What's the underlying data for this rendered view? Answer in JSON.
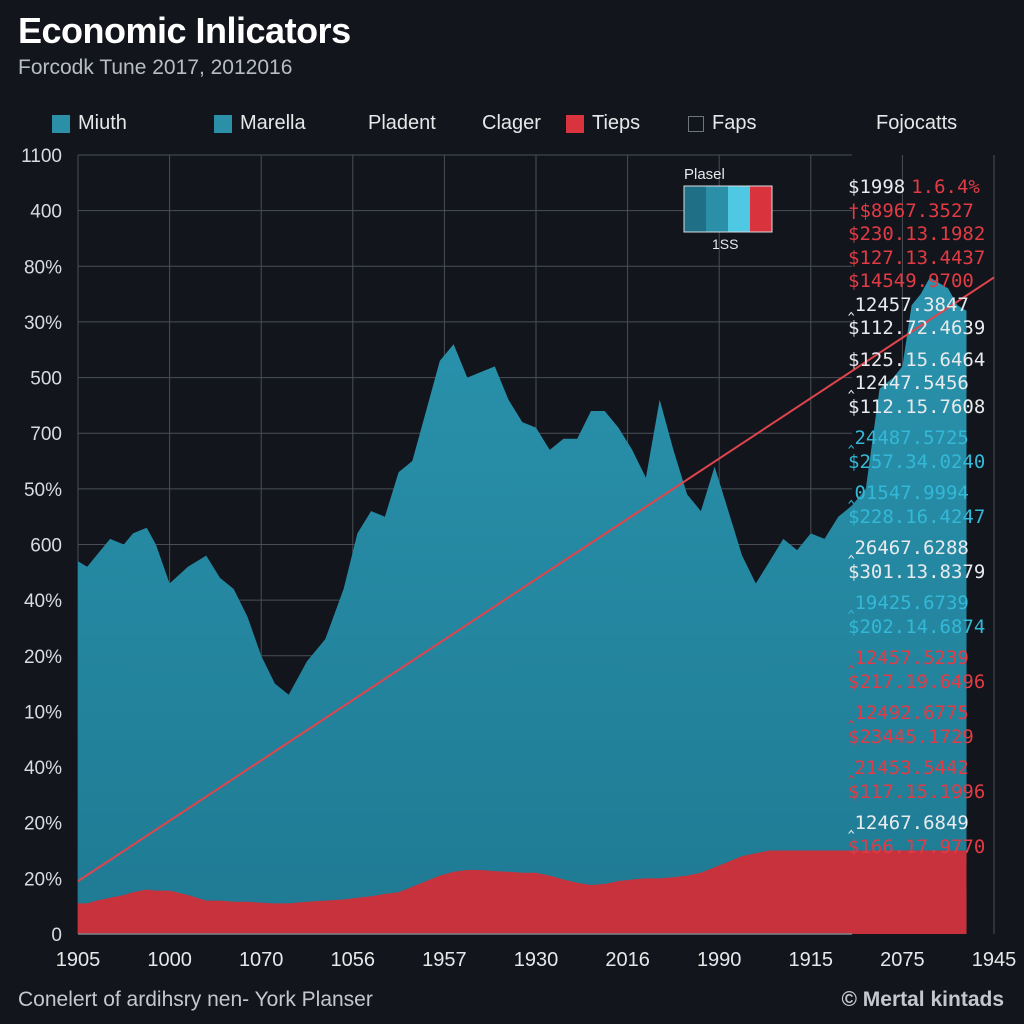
{
  "title": "Economic Inlicators",
  "subtitle": "Forcodk Tune 2017, 2012016",
  "legend": {
    "items": [
      {
        "label": "Miuth",
        "color": "#2b8fa8",
        "swatch": "fill"
      },
      {
        "label": "Marella",
        "color": "#2b8fa8",
        "swatch": "fill"
      },
      {
        "label": "Pladent",
        "color": "",
        "swatch": "none"
      },
      {
        "label": "Clager",
        "color": "",
        "swatch": "none"
      },
      {
        "label": "Tieps",
        "color": "#d9333d",
        "swatch": "fill"
      },
      {
        "label": "Faps",
        "color": "#6e747c",
        "swatch": "outline"
      }
    ],
    "header": "Fojocatts"
  },
  "inset": {
    "label": "Plasel",
    "value": "1SS",
    "colors": [
      "#1f6f86",
      "#2b8fa8",
      "#4fc8e3",
      "#d9333d"
    ]
  },
  "panel_rows": [
    {
      "text": "$1998",
      "extra": "1.6.4%",
      "color": "white",
      "extra_color": "red"
    },
    {
      "text": "†$8967.3527",
      "color": "red"
    },
    {
      "text": "$230.13.1982",
      "color": "red"
    },
    {
      "text": "$127.13.4437",
      "color": "red"
    },
    {
      "text": "$14549.9700",
      "color": "red"
    },
    {
      "text": "‸12457.3847",
      "color": "white"
    },
    {
      "text": "$112.72.4639",
      "color": "white"
    },
    {
      "text": "$125.15.6464",
      "color": "white",
      "gap": true
    },
    {
      "text": "‸12447.5456",
      "color": "white"
    },
    {
      "text": "$112.15.7608",
      "color": "white"
    },
    {
      "text": "‸24487.5725",
      "color": "cyan",
      "gap": true
    },
    {
      "text": "$257.34.0240",
      "color": "cyan"
    },
    {
      "text": "‸01547.9994",
      "color": "cyan",
      "gap": true
    },
    {
      "text": "$228.16.4247",
      "color": "cyan"
    },
    {
      "text": "‸26467.6288",
      "color": "white",
      "gap": true
    },
    {
      "text": "$301.13.8379",
      "color": "white"
    },
    {
      "text": "‸19425.6739",
      "color": "cyan",
      "gap": true
    },
    {
      "text": "$202.14.6874",
      "color": "cyan"
    },
    {
      "text": "‸12457.5239",
      "color": "red",
      "gap": true
    },
    {
      "text": "$217.19.6496",
      "color": "red"
    },
    {
      "text": "‸12492.6775",
      "color": "red",
      "gap": true
    },
    {
      "text": "$23445.1729",
      "color": "red"
    },
    {
      "text": "‸21453.5442",
      "color": "red",
      "gap": true
    },
    {
      "text": "$117.15.1996",
      "color": "red"
    },
    {
      "text": "‸12467.6849",
      "color": "white",
      "gap": true
    },
    {
      "text": "$166.17.9770",
      "color": "red"
    }
  ],
  "footer": "Conelert of ardihsry nen- York Planser",
  "brand": "© Mertal kintads",
  "colors": {
    "area_teal": "#1f7a93",
    "area_teal_top": "#2a93ad",
    "area_red": "#c8323d",
    "trend": "#e0444c",
    "grid": "#4a4f57",
    "background": "#12151b"
  },
  "chart_data": {
    "type": "area",
    "y_tick_labels": [
      "1100",
      "400",
      "80%",
      "30%",
      "500",
      "700",
      "50%",
      "600",
      "40%",
      "20%",
      "10%",
      "40%",
      "20%",
      "20%",
      "0"
    ],
    "x_tick_labels": [
      "1905",
      "1000",
      "1070",
      "1056",
      "1957",
      "1930",
      "2016",
      "1990",
      "1915",
      "2075",
      "1945"
    ],
    "ylim": [
      0,
      14
    ],
    "x": [
      0,
      0.1,
      0.2,
      0.35,
      0.5,
      0.6,
      0.75,
      0.85,
      1.0,
      1.2,
      1.4,
      1.55,
      1.7,
      1.85,
      2.0,
      2.15,
      2.3,
      2.5,
      2.7,
      2.9,
      3.05,
      3.2,
      3.35,
      3.5,
      3.65,
      3.8,
      3.95,
      4.1,
      4.25,
      4.4,
      4.55,
      4.7,
      4.85,
      5.0,
      5.15,
      5.3,
      5.45,
      5.6,
      5.75,
      5.9,
      6.05,
      6.2,
      6.35,
      6.5,
      6.65,
      6.8,
      6.95,
      7.1,
      7.25,
      7.4,
      7.55,
      7.7,
      7.85,
      8.0,
      8.15,
      8.3,
      8.45,
      8.6,
      8.75,
      8.9,
      9.0,
      9.1,
      9.2,
      9.3,
      9.4,
      9.5,
      9.6,
      9.7
    ],
    "series": [
      {
        "name": "Miuth",
        "values": [
          6.7,
          6.6,
          6.8,
          7.1,
          7.0,
          7.2,
          7.3,
          7.0,
          6.3,
          6.6,
          6.8,
          6.4,
          6.2,
          5.7,
          5.0,
          4.5,
          4.3,
          4.9,
          5.3,
          6.2,
          7.2,
          7.6,
          7.5,
          8.3,
          8.5,
          9.4,
          10.3,
          10.6,
          10.0,
          10.1,
          10.2,
          9.6,
          9.2,
          9.1,
          8.7,
          8.9,
          8.9,
          9.4,
          9.4,
          9.1,
          8.7,
          8.2,
          9.6,
          8.7,
          7.9,
          7.6,
          8.4,
          7.6,
          6.8,
          6.3,
          6.7,
          7.1,
          6.9,
          7.2,
          7.1,
          7.5,
          7.7,
          8.0,
          9.8,
          10.0,
          10.2,
          11.3,
          11.5,
          11.8,
          11.7,
          11.6,
          11.3,
          11.2
        ]
      },
      {
        "name": "Tieps",
        "values": [
          0.55,
          0.55,
          0.6,
          0.65,
          0.7,
          0.75,
          0.8,
          0.78,
          0.78,
          0.7,
          0.6,
          0.6,
          0.58,
          0.58,
          0.56,
          0.55,
          0.55,
          0.58,
          0.6,
          0.62,
          0.65,
          0.68,
          0.72,
          0.75,
          0.85,
          0.95,
          1.05,
          1.12,
          1.15,
          1.15,
          1.13,
          1.12,
          1.1,
          1.1,
          1.05,
          0.98,
          0.92,
          0.88,
          0.9,
          0.95,
          0.98,
          1.0,
          1.0,
          1.02,
          1.05,
          1.1,
          1.2,
          1.3,
          1.4,
          1.45,
          1.5,
          1.5,
          1.5,
          1.5,
          1.5,
          1.5,
          1.5,
          1.5,
          1.5,
          1.5,
          1.5,
          1.5,
          1.5,
          1.5,
          1.5,
          1.5,
          1.5,
          1.5
        ]
      }
    ],
    "trend_line": {
      "x": [
        0,
        13.3
      ],
      "y": [
        0.95,
        11.8
      ]
    },
    "grid": true,
    "legend_position": "top"
  }
}
